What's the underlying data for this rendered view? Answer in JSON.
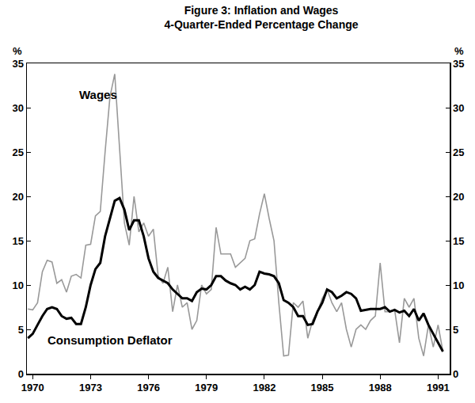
{
  "chart_data": {
    "type": "line",
    "title": "Figure 3: Inflation and Wages",
    "subtitle": "4-Quarter-Ended Percentage Change",
    "ylabel": "%",
    "y2label": "%",
    "x": [
      1969.75,
      1970,
      1970.25,
      1970.5,
      1970.75,
      1971,
      1971.25,
      1971.5,
      1971.75,
      1972,
      1972.25,
      1972.5,
      1972.75,
      1973,
      1973.25,
      1973.5,
      1973.75,
      1974,
      1974.25,
      1974.5,
      1974.75,
      1975,
      1975.25,
      1975.5,
      1975.75,
      1976,
      1976.25,
      1976.5,
      1976.75,
      1977,
      1977.25,
      1977.5,
      1977.75,
      1978,
      1978.25,
      1978.5,
      1978.75,
      1979,
      1979.25,
      1979.5,
      1979.75,
      1980,
      1980.25,
      1980.5,
      1980.75,
      1981,
      1981.25,
      1981.5,
      1981.75,
      1982,
      1982.25,
      1982.5,
      1982.75,
      1983,
      1983.25,
      1983.5,
      1983.75,
      1984,
      1984.25,
      1984.5,
      1984.75,
      1985,
      1985.25,
      1985.5,
      1985.75,
      1986,
      1986.25,
      1986.5,
      1986.75,
      1987,
      1987.25,
      1987.5,
      1987.75,
      1988,
      1988.25,
      1988.5,
      1988.75,
      1989,
      1989.25,
      1989.5,
      1989.75,
      1990,
      1990.25,
      1990.5,
      1990.75,
      1991,
      1991.25
    ],
    "series": [
      {
        "name": "Wages",
        "color": "#999999",
        "line_style": "solid",
        "values": [
          7.3,
          7.2,
          8.0,
          11.5,
          12.8,
          12.6,
          10.2,
          10.6,
          9.2,
          11.0,
          11.2,
          10.8,
          14.5,
          14.6,
          17.8,
          18.3,
          25.0,
          31.2,
          33.8,
          25.5,
          17.0,
          14.5,
          20.0,
          16.0,
          17.0,
          15.5,
          16.3,
          11.0,
          10.2,
          12.0,
          7.0,
          10.0,
          7.5,
          8.0,
          5.0,
          6.0,
          10.0,
          9.0,
          9.5,
          16.5,
          13.5,
          13.5,
          13.5,
          12.0,
          12.5,
          13.0,
          15.0,
          15.2,
          18.0,
          20.3,
          17.5,
          15.0,
          8.0,
          2.0,
          2.1,
          8.0,
          7.5,
          8.2,
          4.0,
          6.0,
          7.0,
          8.5,
          9.5,
          8.0,
          7.0,
          8.0,
          5.0,
          3.0,
          5.0,
          5.5,
          5.0,
          6.0,
          6.5,
          12.5,
          7.0,
          7.0,
          7.2,
          3.5,
          8.5,
          7.5,
          8.5,
          4.0,
          2.0,
          5.5,
          3.0,
          5.5,
          2.5
        ]
      },
      {
        "name": "Consumption Deflator",
        "color": "#000000",
        "line_style": "solid",
        "values": [
          4.0,
          4.5,
          5.5,
          6.5,
          7.3,
          7.5,
          7.3,
          6.5,
          6.2,
          6.3,
          5.6,
          5.6,
          7.5,
          10.0,
          11.8,
          12.5,
          15.5,
          17.5,
          19.5,
          19.8,
          18.5,
          16.2,
          17.3,
          17.3,
          15.5,
          13.0,
          11.5,
          10.8,
          10.5,
          10.2,
          9.5,
          9.0,
          8.5,
          8.5,
          8.2,
          9.2,
          9.6,
          9.5,
          10.0,
          11.0,
          11.0,
          10.5,
          10.2,
          10.0,
          9.5,
          9.8,
          9.5,
          10.0,
          11.5,
          11.3,
          11.2,
          11.0,
          10.2,
          8.3,
          8.0,
          7.5,
          6.5,
          6.5,
          5.5,
          5.6,
          7.0,
          8.0,
          9.5,
          9.2,
          8.5,
          8.8,
          9.2,
          9.0,
          8.5,
          7.1,
          7.2,
          7.3,
          7.3,
          7.3,
          7.5,
          7.0,
          7.2,
          6.9,
          7.1,
          6.5,
          7.3,
          6.0,
          6.8,
          5.5,
          4.5,
          3.5,
          2.5
        ]
      }
    ],
    "annotations": [
      {
        "text": "Wages",
        "x": 1973.4,
        "y": 31.5
      },
      {
        "text": "Consumption Deflator",
        "x": 1974,
        "y": 3.8
      }
    ],
    "xlim": [
      1969.7,
      1991.6
    ],
    "xticks": [
      1970,
      1973,
      1976,
      1979,
      1982,
      1985,
      1988,
      1991
    ],
    "ylim": [
      0,
      35
    ],
    "yticks": [
      0,
      5,
      10,
      15,
      20,
      25,
      30,
      35
    ],
    "y2lim": [
      0,
      35
    ],
    "y2ticks": [
      0,
      5,
      10,
      15,
      20,
      25,
      30,
      35
    ],
    "grid": false
  }
}
